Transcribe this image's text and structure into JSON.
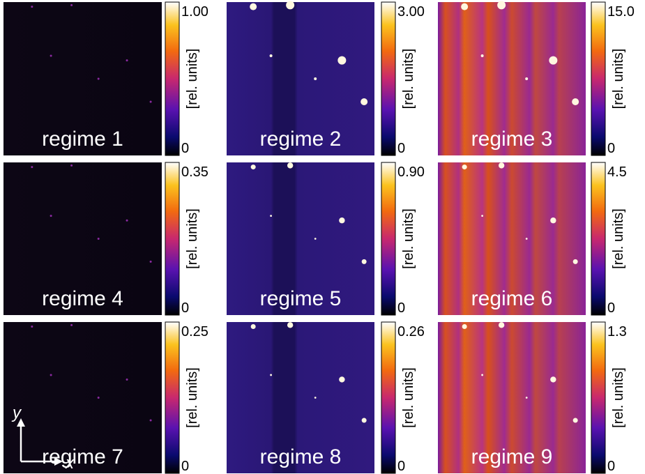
{
  "panels": [
    {
      "label": "regime 1",
      "max": "1.00",
      "min": "0",
      "unit": "[rel. units]"
    },
    {
      "label": "regime 2",
      "max": "3.00",
      "min": "0",
      "unit": "[rel. units]"
    },
    {
      "label": "regime 3",
      "max": "15.0",
      "min": "0",
      "unit": "[rel. units]"
    },
    {
      "label": "regime 4",
      "max": "0.35",
      "min": "0",
      "unit": "[rel. units]"
    },
    {
      "label": "regime 5",
      "max": "0.90",
      "min": "0",
      "unit": "[rel. units]"
    },
    {
      "label": "regime 6",
      "max": "4.5",
      "min": "0",
      "unit": "[rel. units]"
    },
    {
      "label": "regime 7",
      "max": "0.25",
      "min": "0",
      "unit": "[rel. units]"
    },
    {
      "label": "regime 8",
      "max": "0.26",
      "min": "0",
      "unit": "[rel. units]"
    },
    {
      "label": "regime 9",
      "max": "1.3",
      "min": "0",
      "unit": "[rel. units]"
    }
  ],
  "axes": {
    "x": "x",
    "y": "y"
  }
}
